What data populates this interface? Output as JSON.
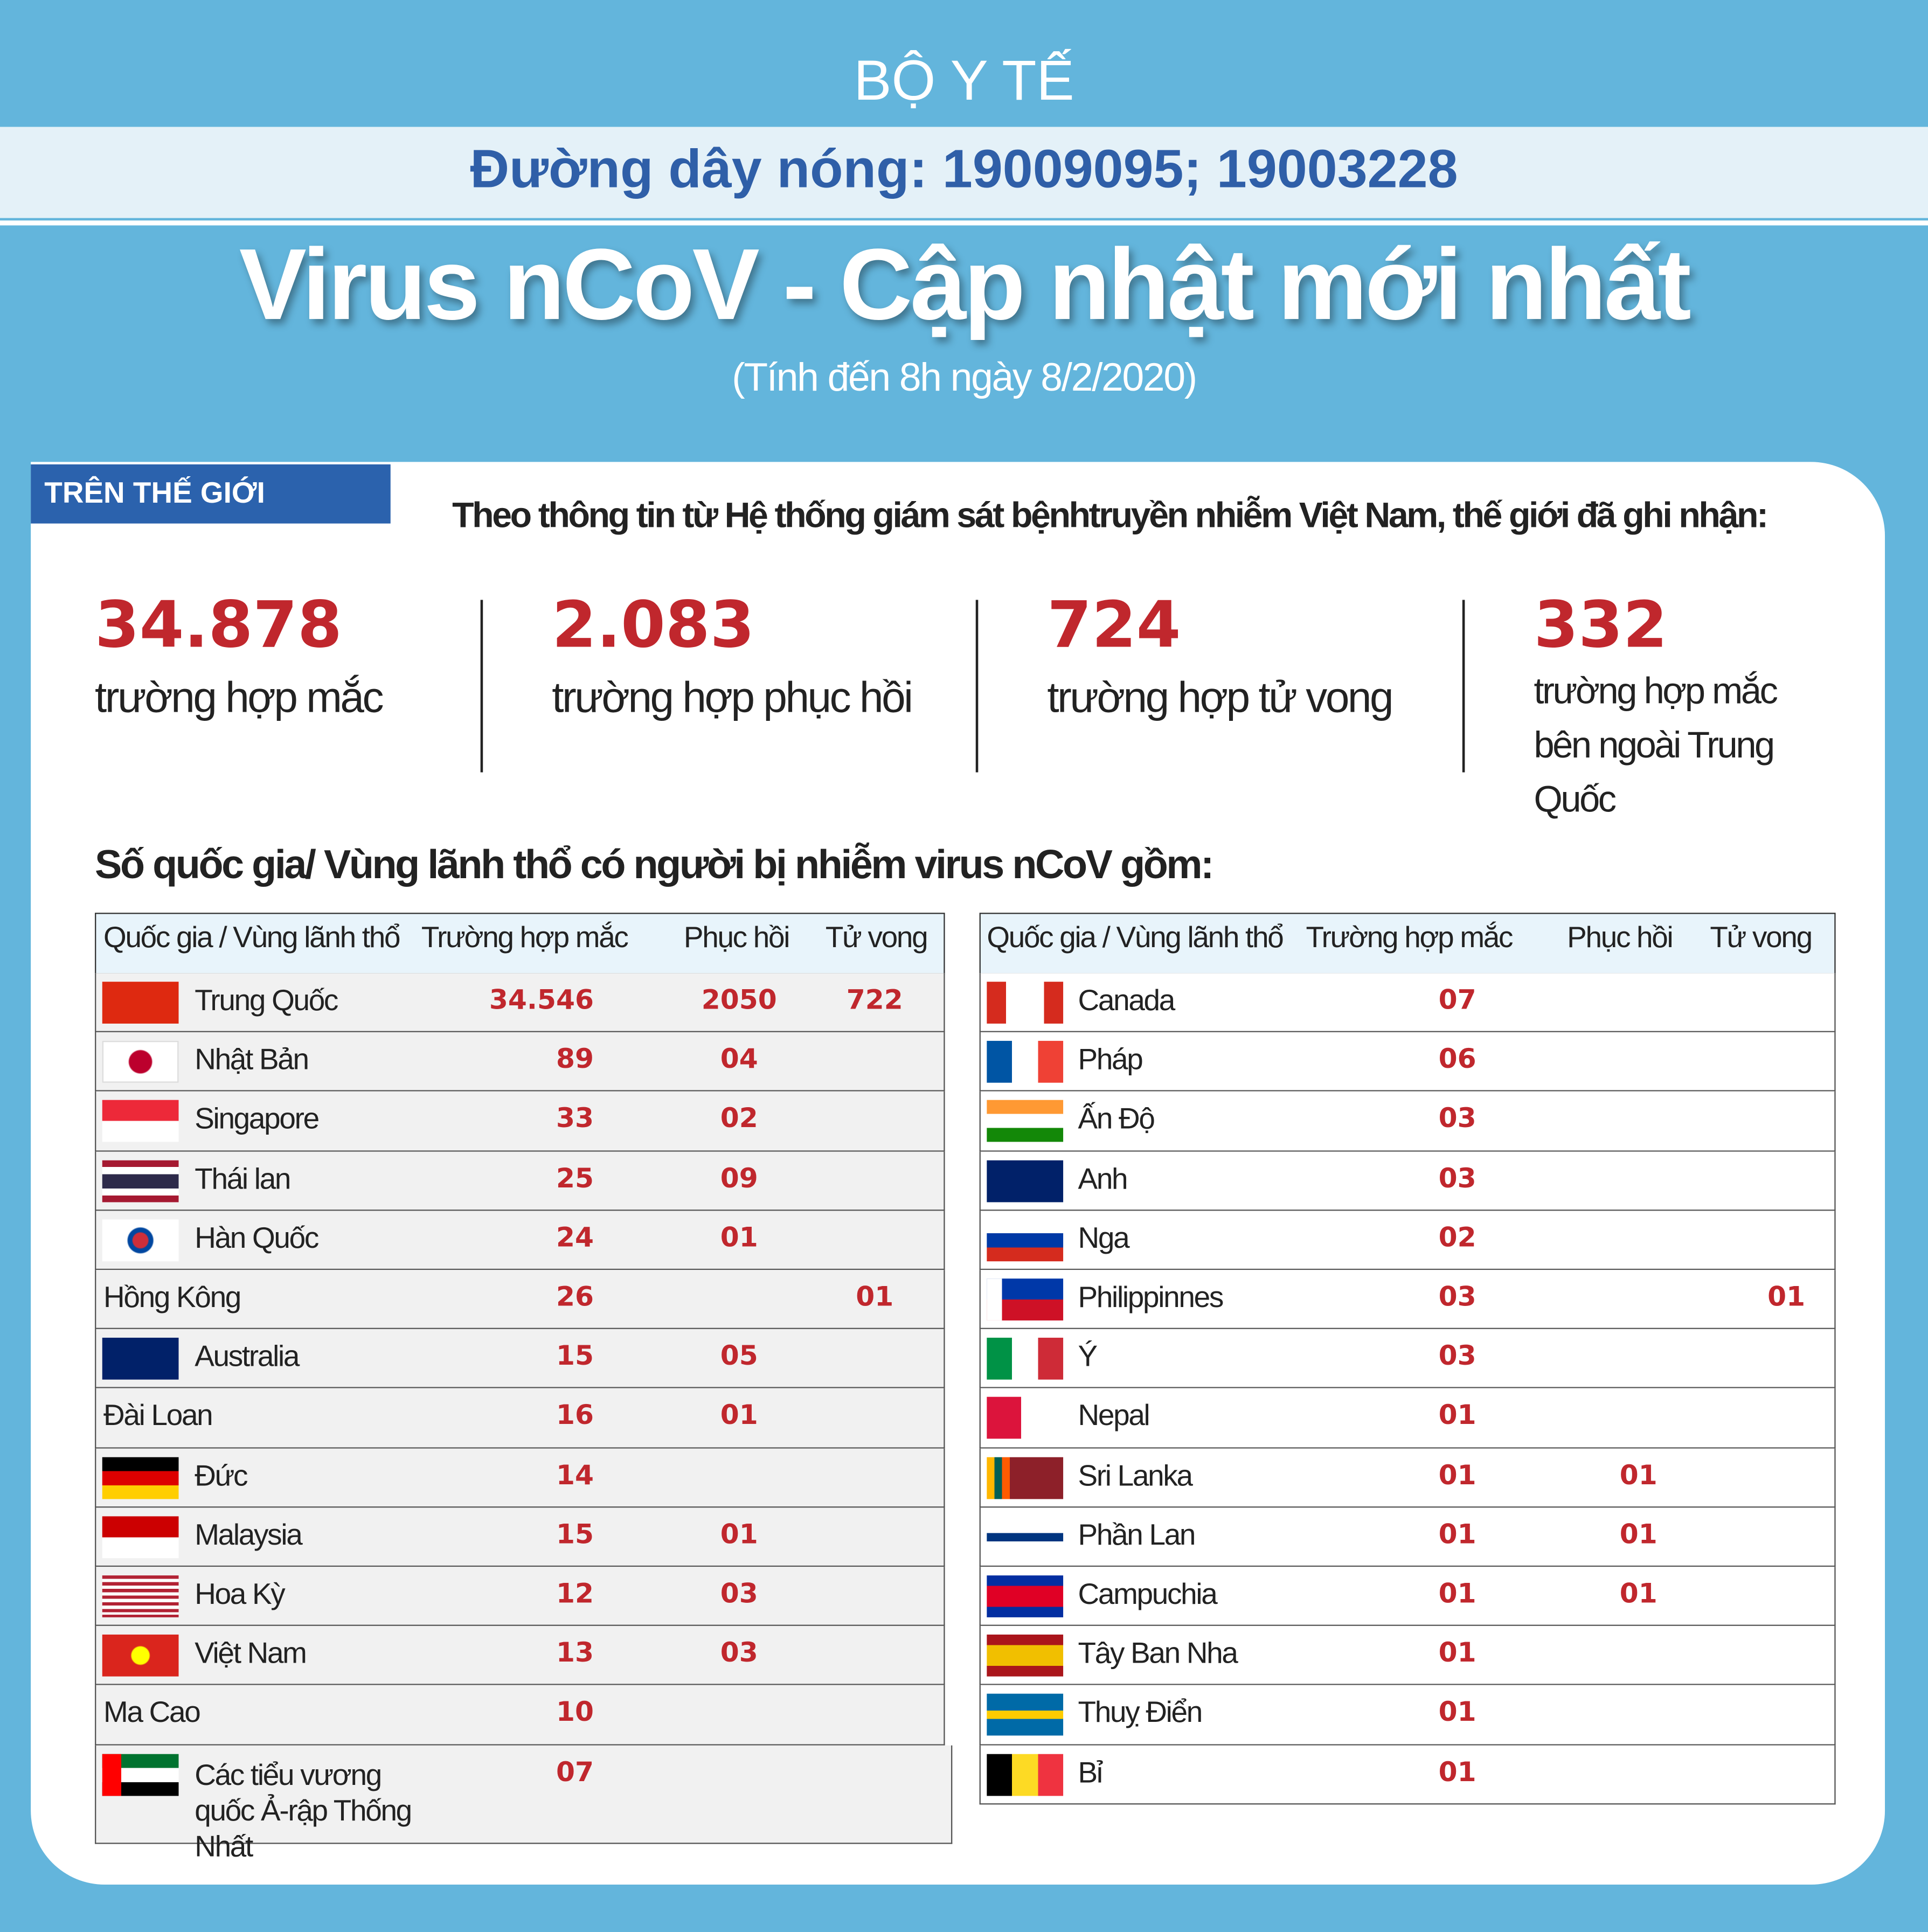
{
  "header": {
    "ministry": "BỘ Y TẾ",
    "hotline": "Đường dây nóng: 19009095; 19003228",
    "title": "Virus nCoV - Cập nhật mới nhất",
    "subtitle": "(Tính đến 8h ngày 8/2/2020)"
  },
  "world": {
    "tag": "TRÊN THẾ GIỚI",
    "intro": "Theo thông tin từ Hệ thống giám sát bệnhtruyền nhiễm Việt Nam, thế giới đã ghi nhận:",
    "stats": [
      {
        "value": "34.878",
        "label": "trường hợp mắc"
      },
      {
        "value": "2.083",
        "label": "trường hợp phục hồi"
      },
      {
        "value": "724",
        "label": "trường hợp tử vong"
      },
      {
        "value": "332",
        "label": "trường hợp mắc bên ngoài Trung Quốc"
      }
    ]
  },
  "countries_heading": "Số quốc gia/ Vùng lãnh thổ có người bị nhiễm virus nCoV gồm:",
  "tables": [
    {
      "columns": [
        "Quốc gia / Vùng lãnh thổ",
        "Trường hợp mắc",
        "Phục hồi",
        "Tử vong"
      ],
      "rows": [
        [
          "Trung Quốc",
          "34.546",
          "2050",
          "722"
        ],
        [
          "Nhật Bản",
          "89",
          "04",
          null
        ],
        [
          "Singapore",
          "33",
          "02",
          null
        ],
        [
          "Thái lan",
          "25",
          "09",
          null
        ],
        [
          "Hàn Quốc",
          "24",
          "01",
          null
        ],
        [
          "Hồng Kông",
          "26",
          null,
          "01"
        ],
        [
          "Australia",
          "15",
          "05",
          null
        ],
        [
          "Đài Loan",
          "16",
          "01",
          null
        ],
        [
          "Đức",
          "14",
          null,
          null
        ],
        [
          "Malaysia",
          "15",
          "01",
          null
        ],
        [
          "Hoa Kỳ",
          "12",
          "03",
          null
        ],
        [
          "Việt Nam",
          "13",
          "03",
          null
        ],
        [
          "Ma Cao",
          "10",
          null,
          null
        ],
        [
          "Các tiểu vương quốc Ả-rập Thống Nhất",
          "07",
          null,
          null
        ]
      ]
    },
    {
      "columns": [
        "Quốc gia / Vùng lãnh thổ",
        "Trường hợp mắc",
        "Phục hồi",
        "Tử vong"
      ],
      "rows": [
        [
          "Canada",
          "07",
          null,
          null
        ],
        [
          "Pháp",
          "06",
          null,
          null
        ],
        [
          "Ấn Độ",
          "03",
          null,
          null
        ],
        [
          "Anh",
          "03",
          null,
          null
        ],
        [
          "Nga",
          "02",
          null,
          null
        ],
        [
          "Philippinnes",
          "03",
          null,
          "01"
        ],
        [
          "Ý",
          "03",
          null,
          null
        ],
        [
          "Nepal",
          "01",
          null,
          null
        ],
        [
          "Sri Lanka",
          "01",
          "01",
          null
        ],
        [
          "Phần Lan",
          "01",
          "01",
          null
        ],
        [
          "Campuchia",
          "01",
          "01",
          null
        ],
        [
          "Tây Ban Nha",
          "01",
          null,
          null
        ],
        [
          "Thuỵ Điển",
          "01",
          null,
          null
        ],
        [
          "Bỉ",
          "01",
          null,
          null
        ]
      ]
    }
  ]
}
